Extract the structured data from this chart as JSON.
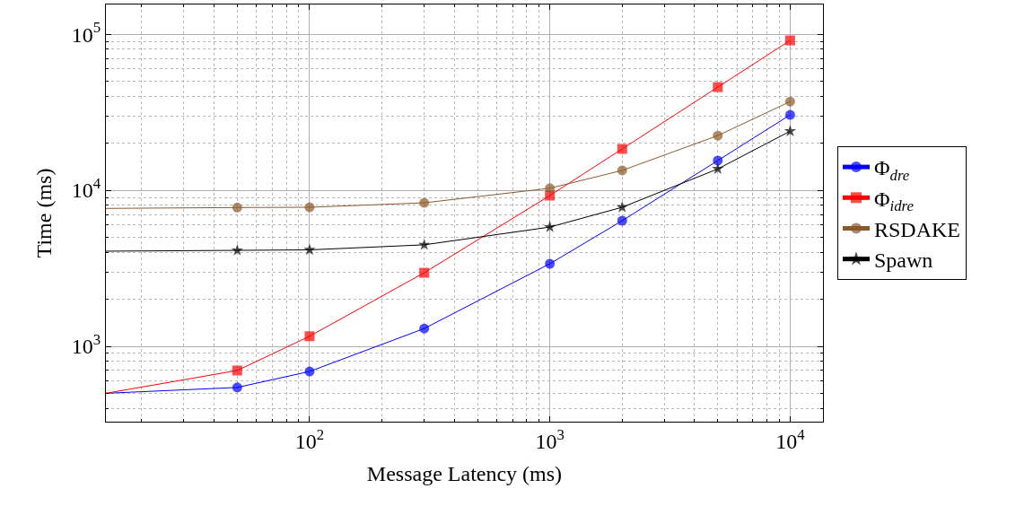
{
  "chart_data": {
    "type": "line",
    "xlabel": "Message Latency (ms)",
    "ylabel": "Time (ms)",
    "log": "xy",
    "grid": true,
    "legend": "right",
    "xlim": [
      14.2,
      13700
    ],
    "ylim": [
      329,
      155000
    ],
    "xticks": [
      {
        "value": 100,
        "label": "10$^{2}$"
      },
      {
        "value": 1000,
        "label": "10$^{3}$"
      },
      {
        "value": 10000,
        "label": "10$^{4}$"
      }
    ],
    "yticks": [
      {
        "value": 1000,
        "label": "10$^{3}$"
      },
      {
        "value": 10000,
        "label": "10$^{4}$"
      },
      {
        "value": 100000,
        "label": "10$^{5}$"
      }
    ],
    "x": [
      14.2,
      50,
      100,
      300,
      1000,
      2000,
      5000,
      10000
    ],
    "series": [
      {
        "name": "Φ$_{dre}$",
        "color": "#0000ff",
        "marker": "circle",
        "values": [
          500,
          545,
          690,
          1300,
          3380,
          6380,
          15500,
          30400
        ]
      },
      {
        "name": "Φ$_{idre}$",
        "color": "#ff0000",
        "marker": "square",
        "values": [
          500,
          700,
          1160,
          2960,
          9250,
          18400,
          45800,
          91200
        ]
      },
      {
        "name": "RSDAKE",
        "color": "#8b5a2b",
        "marker": "circle",
        "values": [
          7650,
          7750,
          7780,
          8310,
          10300,
          13400,
          22400,
          37000
        ]
      },
      {
        "name": "Spawn",
        "color": "#000000",
        "marker": "star",
        "values": [
          4070,
          4120,
          4150,
          4470,
          5810,
          7780,
          13700,
          23900
        ]
      }
    ]
  }
}
